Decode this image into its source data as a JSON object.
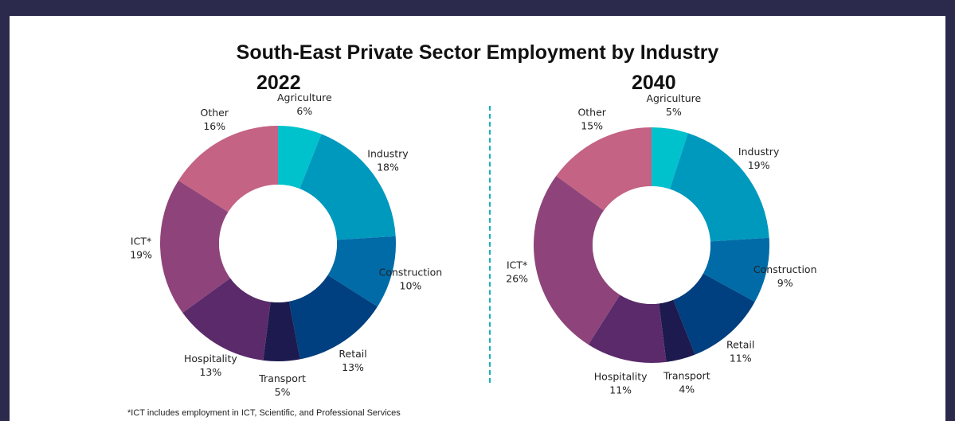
{
  "title": "South-East Private Sector Employment by Industry",
  "footnote": "*ICT includes employment in ICT, Scientific, and Professional Services",
  "colors": {
    "Agriculture": "#00c2cc",
    "Industry": "#0099be",
    "Construction": "#006ba6",
    "Retail": "#003f80",
    "Transport": "#1c1a4e",
    "Hospitality": "#5a2a6a",
    "ICT*": "#8e447a",
    "Other": "#c46384"
  },
  "chart_data": [
    {
      "type": "pie",
      "title": "2022",
      "categories": [
        "Agriculture",
        "Industry",
        "Construction",
        "Retail",
        "Transport",
        "Hospitality",
        "ICT*",
        "Other"
      ],
      "values": [
        6,
        18,
        10,
        13,
        5,
        13,
        19,
        16
      ],
      "labels": [
        "6%",
        "18%",
        "10%",
        "13%",
        "5%",
        "13%",
        "19%",
        "16%"
      ],
      "donut": true
    },
    {
      "type": "pie",
      "title": "2040",
      "categories": [
        "Agriculture",
        "Industry",
        "Construction",
        "Retail",
        "Transport",
        "Hospitality",
        "ICT*",
        "Other"
      ],
      "values": [
        5,
        19,
        9,
        11,
        4,
        11,
        26,
        15
      ],
      "labels": [
        "5%",
        "19%",
        "9%",
        "11%",
        "4%",
        "11%",
        "26%",
        "15%"
      ],
      "donut": true
    }
  ]
}
